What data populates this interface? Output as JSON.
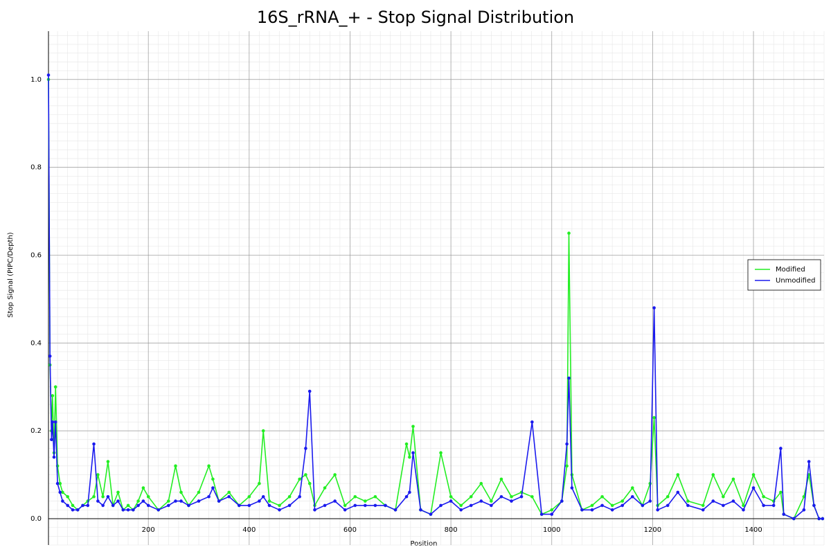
{
  "chart_data": {
    "type": "line",
    "title": "16S_rRNA_+ - Stop Signal Distribution",
    "x_label": "Position",
    "y_label": "Stop Signal (PIPC/Depth)",
    "x": [
      2,
      5,
      8,
      10,
      13,
      16,
      20,
      25,
      30,
      40,
      50,
      60,
      70,
      80,
      92,
      100,
      110,
      120,
      130,
      140,
      150,
      160,
      170,
      180,
      190,
      200,
      220,
      240,
      254,
      265,
      280,
      300,
      320,
      328,
      340,
      360,
      380,
      400,
      420,
      428,
      440,
      460,
      480,
      500,
      512,
      520,
      530,
      550,
      570,
      590,
      610,
      630,
      650,
      670,
      690,
      712,
      718,
      725,
      740,
      760,
      780,
      800,
      820,
      840,
      860,
      880,
      900,
      920,
      940,
      961,
      980,
      1000,
      1020,
      1030,
      1034,
      1040,
      1060,
      1080,
      1100,
      1120,
      1140,
      1160,
      1180,
      1195,
      1203,
      1210,
      1230,
      1250,
      1270,
      1300,
      1320,
      1340,
      1360,
      1380,
      1400,
      1420,
      1440,
      1454,
      1460,
      1480,
      1500,
      1510,
      1520,
      1530,
      1537
    ],
    "series": [
      {
        "name": "Modified",
        "color": "#22ee22",
        "values": [
          1.0,
          0.35,
          0.2,
          0.28,
          0.15,
          0.3,
          0.12,
          0.08,
          0.06,
          0.05,
          0.03,
          0.02,
          0.03,
          0.04,
          0.05,
          0.1,
          0.05,
          0.13,
          0.03,
          0.06,
          0.02,
          0.03,
          0.02,
          0.04,
          0.07,
          0.05,
          0.02,
          0.04,
          0.12,
          0.06,
          0.03,
          0.06,
          0.12,
          0.09,
          0.04,
          0.06,
          0.03,
          0.05,
          0.08,
          0.2,
          0.04,
          0.03,
          0.05,
          0.09,
          0.1,
          0.08,
          0.03,
          0.07,
          0.1,
          0.03,
          0.05,
          0.04,
          0.05,
          0.03,
          0.02,
          0.17,
          0.14,
          0.21,
          0.02,
          0.01,
          0.15,
          0.05,
          0.03,
          0.05,
          0.08,
          0.04,
          0.09,
          0.05,
          0.06,
          0.05,
          0.01,
          0.02,
          0.04,
          0.12,
          0.65,
          0.1,
          0.02,
          0.03,
          0.05,
          0.03,
          0.04,
          0.07,
          0.03,
          0.08,
          0.23,
          0.03,
          0.05,
          0.1,
          0.04,
          0.03,
          0.1,
          0.05,
          0.09,
          0.03,
          0.1,
          0.05,
          0.04,
          0.06,
          0.01,
          0.0,
          0.05,
          0.1,
          0.03,
          0.0,
          0.0
        ]
      },
      {
        "name": "Unmodified",
        "color": "#1a1aee",
        "values": [
          1.01,
          0.37,
          0.18,
          0.22,
          0.14,
          0.22,
          0.08,
          0.06,
          0.04,
          0.03,
          0.02,
          0.02,
          0.03,
          0.03,
          0.17,
          0.04,
          0.03,
          0.05,
          0.03,
          0.04,
          0.02,
          0.02,
          0.02,
          0.03,
          0.04,
          0.03,
          0.02,
          0.03,
          0.04,
          0.04,
          0.03,
          0.04,
          0.05,
          0.07,
          0.04,
          0.05,
          0.03,
          0.03,
          0.04,
          0.05,
          0.03,
          0.02,
          0.03,
          0.05,
          0.16,
          0.29,
          0.02,
          0.03,
          0.04,
          0.02,
          0.03,
          0.03,
          0.03,
          0.03,
          0.02,
          0.05,
          0.06,
          0.15,
          0.02,
          0.01,
          0.03,
          0.04,
          0.02,
          0.03,
          0.04,
          0.03,
          0.05,
          0.04,
          0.05,
          0.22,
          0.01,
          0.01,
          0.04,
          0.17,
          0.32,
          0.07,
          0.02,
          0.02,
          0.03,
          0.02,
          0.03,
          0.05,
          0.03,
          0.04,
          0.48,
          0.02,
          0.03,
          0.06,
          0.03,
          0.02,
          0.04,
          0.03,
          0.04,
          0.02,
          0.07,
          0.03,
          0.03,
          0.16,
          0.01,
          0.0,
          0.02,
          0.13,
          0.03,
          0.0,
          0.0
        ]
      }
    ],
    "xlim": [
      2,
      1540
    ],
    "ylim": [
      -0.06,
      1.11
    ],
    "xticks": [
      200,
      400,
      600,
      800,
      1000,
      1200,
      1400
    ],
    "yticks": [
      {
        "value": 0,
        "label": "0.0"
      },
      {
        "value": 0.2,
        "label": "0.2"
      },
      {
        "value": 0.4,
        "label": "0.4"
      },
      {
        "value": 0.6,
        "label": "0.6"
      },
      {
        "value": 0.8,
        "label": "0.8"
      },
      {
        "value": 1,
        "label": "1.0"
      }
    ],
    "grid": true,
    "minor_grid": true,
    "legend_position": "right"
  }
}
